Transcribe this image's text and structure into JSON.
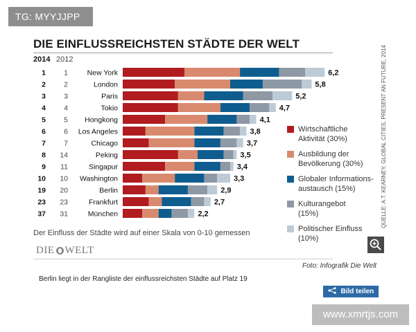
{
  "badge": {
    "label": "TG: MYYJJPP"
  },
  "chart_data": {
    "type": "stacked-bar-horizontal",
    "title": "DIE EINFLUSSREICHSTEN STÄDTE DER WELT",
    "rank_headers": [
      "2014",
      "2012"
    ],
    "categories": [
      "New York",
      "London",
      "Paris",
      "Tokio",
      "Hongkong",
      "Los Angeles",
      "Chicago",
      "Peking",
      "Singapur",
      "Washington",
      "Berlin",
      "Frankfurt",
      "München"
    ],
    "rank_2014": [
      "1",
      "2",
      "3",
      "4",
      "5",
      "6",
      "7",
      "8",
      "9",
      "10",
      "19",
      "23",
      "37"
    ],
    "rank_2012": [
      "1",
      "2",
      "3",
      "4",
      "5",
      "6",
      "7",
      "14",
      "11",
      "10",
      "20",
      "23",
      "31"
    ],
    "totals": [
      6.2,
      5.8,
      5.2,
      4.7,
      4.1,
      3.8,
      3.7,
      3.5,
      3.4,
      3.3,
      2.9,
      2.7,
      2.2
    ],
    "total_labels": [
      "6,2",
      "5,8",
      "5,2",
      "4,7",
      "4,1",
      "3,8",
      "3,7",
      "3,5",
      "3,4",
      "3,3",
      "2,9",
      "2,7",
      "2,2"
    ],
    "series": [
      {
        "name": "Wirtschaftliche Aktivität (30%)",
        "lines": [
          "Wirtschaftliche",
          "Aktivität (30%)"
        ],
        "color": "#b01c1f",
        "values": [
          1.9,
          1.6,
          1.7,
          1.7,
          1.3,
          0.7,
          0.8,
          1.7,
          1.3,
          0.6,
          0.7,
          0.8,
          0.6
        ]
      },
      {
        "name": "Ausbildung der Bevölkerung (30%)",
        "lines": [
          "Ausbildung der",
          "Bevölkerung (30%)"
        ],
        "color": "#d98a6e",
        "values": [
          1.7,
          1.7,
          0.8,
          1.3,
          1.3,
          1.5,
          1.4,
          0.6,
          0.9,
          1.0,
          0.4,
          0.4,
          0.5
        ]
      },
      {
        "name": "Globaler Informationsaustausch (15%)",
        "lines": [
          "Globaler Informations-",
          "austausch (15%)"
        ],
        "color": "#0f5d8f",
        "values": [
          1.2,
          1.0,
          1.2,
          0.9,
          0.9,
          0.9,
          0.8,
          0.8,
          0.8,
          0.9,
          0.9,
          0.9,
          0.4
        ]
      },
      {
        "name": "Kulturangebot (15%)",
        "lines": [
          "Kulturangebot",
          "(15%)"
        ],
        "color": "#8e99a5",
        "values": [
          0.8,
          1.2,
          0.9,
          0.6,
          0.4,
          0.5,
          0.5,
          0.3,
          0.3,
          0.4,
          0.6,
          0.4,
          0.5
        ]
      },
      {
        "name": "Politischer Einfluss (10%)",
        "lines": [
          "Politischer Einfluss",
          "(10%)"
        ],
        "color": "#bccbd6",
        "values": [
          0.6,
          0.3,
          0.6,
          0.2,
          0.2,
          0.2,
          0.2,
          0.1,
          0.1,
          0.4,
          0.3,
          0.2,
          0.2
        ]
      }
    ],
    "xlim": [
      0,
      6.6
    ]
  },
  "source_note": "QUELLE: A.T. KEARNEY, GLOBAL CITIES, PRESENT AN FUTURE, 2014",
  "scale_note": "Der Einfluss der Städte wird auf einer Skala von 0-10 gemessen",
  "logo": {
    "left": "DIE",
    "right": "WELT"
  },
  "zoom_icon": "magnifier-plus-icon",
  "photo_credit": "Foto: Infografik Die Welt",
  "caption": "Berlin liegt in der Rangliste der einflussreichsten Städte auf Platz 19",
  "share": {
    "icon": "share-icon",
    "label": "Bild teilen"
  },
  "watermark": "www.xmrtjs.com"
}
